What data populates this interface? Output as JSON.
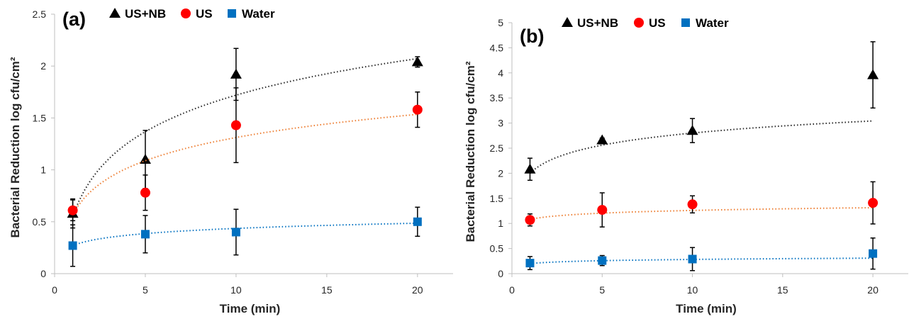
{
  "chart_data": [
    {
      "type": "scatter",
      "panel_label": "(a)",
      "xlabel": "Time (min)",
      "ylabel": "Bacterial Reduction log cfu/cm²",
      "xlim": [
        0,
        22
      ],
      "ylim": [
        0,
        2.5
      ],
      "xticks": [
        "0",
        "5",
        "10",
        "15",
        "20"
      ],
      "yticks": [
        "0",
        "0.5",
        "1",
        "1.5",
        "2",
        "2.5"
      ],
      "grid": false,
      "legend_placement": "top",
      "x": [
        1,
        5,
        10,
        20
      ],
      "series": [
        {
          "name": "US+NB",
          "marker": "triangle",
          "color": "#000000",
          "trend_color": "#262626",
          "values": [
            0.58,
            1.1,
            1.92,
            2.04
          ],
          "errors": [
            0.14,
            0.28,
            0.25,
            0.05
          ],
          "trend": [
            0.55,
            0.0508
          ]
        },
        {
          "name": "US",
          "marker": "circle",
          "color": "#ff0000",
          "trend_color": "#ed7d31",
          "values": [
            0.61,
            0.78,
            1.43,
            1.58
          ],
          "errors": [
            0.1,
            0.17,
            0.36,
            0.17
          ],
          "trend": [
            0.57,
            0.0322
          ]
        },
        {
          "name": "Water",
          "marker": "square",
          "color": "#0070c0",
          "trend_color": "#0070c0",
          "values": [
            0.27,
            0.38,
            0.4,
            0.5
          ],
          "errors": [
            0.2,
            0.18,
            0.22,
            0.14
          ],
          "trend": [
            0.27,
            0.0072
          ]
        }
      ]
    },
    {
      "type": "scatter",
      "panel_label": "(b)",
      "xlabel": "Time (min)",
      "ylabel": "Bacterial Reduction log cfu/cm²",
      "xlim": [
        0,
        22
      ],
      "ylim": [
        0,
        5
      ],
      "xticks": [
        "0",
        "5",
        "10",
        "15",
        "20"
      ],
      "yticks": [
        "0",
        "0.5",
        "1",
        "1.5",
        "2",
        "2.5",
        "3",
        "3.5",
        "4",
        "4.5",
        "5"
      ],
      "grid": false,
      "legend_placement": "top",
      "x": [
        1,
        5,
        10,
        20
      ],
      "series": [
        {
          "name": "US+NB",
          "marker": "triangle",
          "color": "#000000",
          "trend_color": "#262626",
          "values": [
            2.08,
            2.66,
            2.85,
            3.96
          ],
          "errors": [
            0.22,
            0.04,
            0.24,
            0.66
          ],
          "trend": [
            2.0,
            0.0174
          ]
        },
        {
          "name": "US",
          "marker": "circle",
          "color": "#ff0000",
          "trend_color": "#ed7d31",
          "values": [
            1.07,
            1.27,
            1.38,
            1.41
          ],
          "errors": [
            0.12,
            0.34,
            0.17,
            0.42
          ],
          "trend": [
            1.08,
            0.0039
          ]
        },
        {
          "name": "Water",
          "marker": "square",
          "color": "#0070c0",
          "trend_color": "#0070c0",
          "values": [
            0.21,
            0.26,
            0.29,
            0.4
          ],
          "errors": [
            0.13,
            0.1,
            0.23,
            0.31
          ],
          "trend": [
            0.2,
            0.0018
          ]
        }
      ]
    }
  ]
}
